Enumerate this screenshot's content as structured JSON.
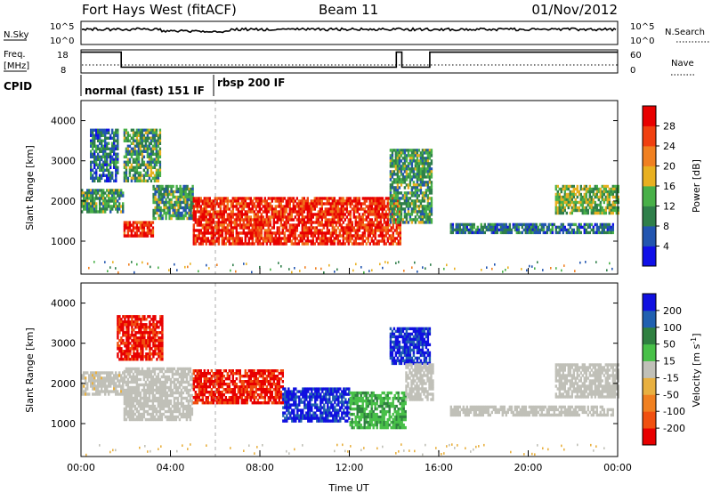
{
  "header": {
    "station": "Fort Hays West (fitACF)",
    "beam": "Beam 11",
    "date": "01/Nov/2012"
  },
  "panels": {
    "nsky": {
      "left_label": "N.Sky",
      "left_ticks": [
        "10^5",
        "10^0"
      ],
      "right_label": "N.Search",
      "right_ticks": [
        "10^5",
        "10^0"
      ]
    },
    "freq": {
      "left_label": "Freq.",
      "left_unit": "[MHz]",
      "left_ticks": [
        "18",
        "8"
      ],
      "right_label": "Nave",
      "right_ticks": [
        "60",
        "0"
      ]
    },
    "cpid": {
      "label": "CPID",
      "segments": [
        "normal (fast) 151 IF",
        "rbsp 200 IF"
      ]
    }
  },
  "colors": {
    "power": [
      "#1010e8",
      "#2255b0",
      "#2f7f4a",
      "#48b048",
      "#e8b020",
      "#f08020",
      "#f04010",
      "#e80000"
    ],
    "velocity": [
      "#e80000",
      "#f05010",
      "#f08020",
      "#e8b040",
      "#c0c0b8",
      "#48c048",
      "#2f8040",
      "#2060b0",
      "#1010e0"
    ]
  },
  "chart_data": [
    {
      "type": "heatmap",
      "name": "power",
      "xlabel": "",
      "ylabel": "Slant Range [km]",
      "xlim": [
        "00:00",
        "24:00"
      ],
      "ylim": [
        180,
        4500
      ],
      "yticks": [
        1000,
        2000,
        3000,
        4000
      ],
      "colorbar": {
        "label": "Power [dB]",
        "ticks": [
          4,
          8,
          12,
          16,
          20,
          24,
          28
        ],
        "range": [
          0,
          32
        ]
      },
      "features": [
        {
          "from_h": 0.0,
          "to_h": 1.9,
          "range_km": [
            1750,
            2300
          ],
          "value": 12
        },
        {
          "from_h": 0.4,
          "to_h": 1.6,
          "range_km": [
            2500,
            3800
          ],
          "value": 8
        },
        {
          "from_h": 1.9,
          "to_h": 3.2,
          "range_km": [
            1150,
            1500
          ],
          "value": 28
        },
        {
          "from_h": 1.9,
          "to_h": 3.5,
          "range_km": [
            2500,
            3800
          ],
          "value": 12
        },
        {
          "from_h": 3.2,
          "to_h": 5.0,
          "range_km": [
            1600,
            2400
          ],
          "value": 12
        },
        {
          "from_h": 5.0,
          "to_h": 14.3,
          "range_km": [
            950,
            2100
          ],
          "value": 28
        },
        {
          "from_h": 13.8,
          "to_h": 15.7,
          "range_km": [
            1500,
            3300
          ],
          "value": 12
        },
        {
          "from_h": 16.5,
          "to_h": 23.8,
          "range_km": [
            1250,
            1450
          ],
          "value": 8
        },
        {
          "from_h": 21.2,
          "to_h": 24.0,
          "range_km": [
            1700,
            2400
          ],
          "value": 14
        }
      ]
    },
    {
      "type": "heatmap",
      "name": "velocity",
      "xlabel": "Time UT",
      "ylabel": "Slant Range [km]",
      "xlim": [
        "00:00",
        "24:00"
      ],
      "xticks": [
        "00:00",
        "04:00",
        "08:00",
        "12:00",
        "16:00",
        "20:00",
        "00:00"
      ],
      "ylim": [
        180,
        4500
      ],
      "yticks": [
        1000,
        2000,
        3000,
        4000
      ],
      "colorbar": {
        "label": "Velocity [m s^-1]",
        "ticks": [
          200,
          100,
          50,
          15,
          -15,
          -50,
          -100,
          -200
        ],
        "range": [
          -250,
          250
        ]
      },
      "features": [
        {
          "from_h": 0.0,
          "to_h": 1.9,
          "range_km": [
            1750,
            2300
          ],
          "value": -10
        },
        {
          "from_h": 1.6,
          "to_h": 3.6,
          "range_km": [
            2600,
            3700
          ],
          "value": -200
        },
        {
          "from_h": 1.9,
          "to_h": 5.0,
          "range_km": [
            1100,
            2400
          ],
          "value": 0
        },
        {
          "from_h": 5.0,
          "to_h": 9.0,
          "range_km": [
            1500,
            2350
          ],
          "value": -200
        },
        {
          "from_h": 9.0,
          "to_h": 12.0,
          "range_km": [
            1050,
            1900
          ],
          "value": 200
        },
        {
          "from_h": 12.0,
          "to_h": 14.5,
          "range_km": [
            900,
            1800
          ],
          "value": 75
        },
        {
          "from_h": 13.8,
          "to_h": 15.6,
          "range_km": [
            2500,
            3400
          ],
          "value": 200
        },
        {
          "from_h": 14.5,
          "to_h": 15.7,
          "range_km": [
            1600,
            2500
          ],
          "value": 0
        },
        {
          "from_h": 16.5,
          "to_h": 23.8,
          "range_km": [
            1250,
            1450
          ],
          "value": 0
        },
        {
          "from_h": 21.2,
          "to_h": 24.0,
          "range_km": [
            1700,
            2500
          ],
          "value": 0
        }
      ]
    },
    {
      "type": "line",
      "name": "frequency-and-nave",
      "series": [
        {
          "x_hours": [
            0,
            1.8,
            1.8,
            14.1,
            14.1,
            14.35,
            14.35,
            15.6,
            15.6,
            24
          ],
          "values": [
            17,
            17,
            10.5,
            10.5,
            17,
            17,
            10.5,
            10.5,
            17,
            17
          ]
        }
      ]
    }
  ]
}
